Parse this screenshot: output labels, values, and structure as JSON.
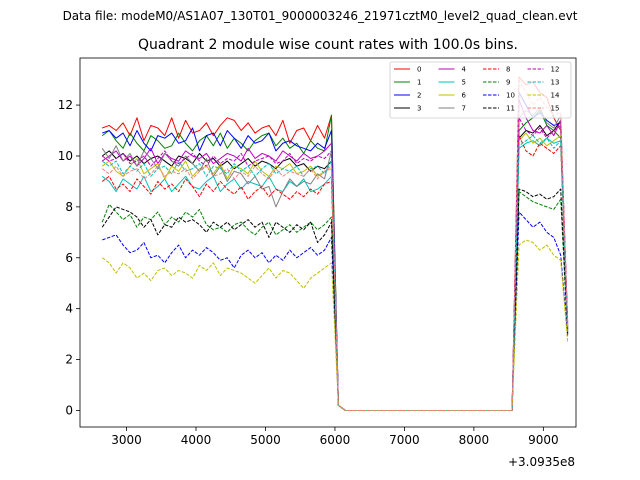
{
  "suptitle": "Data file: modeM0/AS1A07_130T01_9000003246_21971cztM0_level2_quad_clean.evt",
  "chart_data": {
    "type": "line",
    "title": "Quadrant 2 module wise count rates with 100.0s bins.",
    "xlabel": "",
    "ylabel": "",
    "offset_label": "+3.0935e8",
    "xlim": [
      2330,
      9470
    ],
    "ylim": [
      -0.65,
      13.85
    ],
    "xticks": [
      3000,
      4000,
      5000,
      6000,
      7000,
      8000,
      9000
    ],
    "xtick_labels": [
      "3000",
      "4000",
      "5000",
      "6000",
      "7000",
      "8000",
      "9000"
    ],
    "yticks": [
      0,
      2,
      4,
      6,
      8,
      10,
      12
    ],
    "ytick_labels": [
      "0",
      "2",
      "4",
      "6",
      "8",
      "10",
      "12"
    ],
    "x_start": 2650,
    "bin_width": 100,
    "legend_position": "top-right",
    "legend_columns": 4,
    "series": [
      {
        "name": "0",
        "color": "#ff0000",
        "dash": "solid",
        "values": [
          11.1,
          11.2,
          11.0,
          11.3,
          10.8,
          11.5,
          10.6,
          11.2,
          11.1,
          10.8,
          11.5,
          10.7,
          11.4,
          10.9,
          11.0,
          11.3,
          10.8,
          11.2,
          11.5,
          11.4,
          11.0,
          11.3,
          10.9,
          11.1,
          11.2,
          10.8,
          11.4,
          10.5,
          11.0,
          11.1,
          10.6,
          11.2,
          10.7,
          11.6,
          0.2,
          0,
          0,
          0,
          0,
          0,
          0,
          0,
          0,
          0,
          0,
          0,
          0,
          0,
          0,
          0,
          0,
          0,
          0,
          0,
          0,
          0,
          0,
          0,
          0,
          0,
          13.1,
          12.8,
          12.9,
          12.5,
          12.3,
          11.5,
          11.0,
          3.5
        ]
      },
      {
        "name": "1",
        "color": "#008000",
        "dash": "solid",
        "values": [
          10.8,
          11.0,
          10.6,
          10.3,
          10.9,
          10.5,
          10.2,
          10.8,
          10.6,
          10.3,
          10.4,
          10.9,
          10.5,
          10.2,
          10.6,
          10.8,
          10.4,
          10.9,
          10.3,
          10.7,
          10.5,
          10.2,
          10.6,
          10.8,
          10.9,
          10.4,
          10.7,
          10.3,
          10.5,
          10.1,
          10.6,
          10.3,
          10.2,
          11.6,
          0.2,
          0,
          0,
          0,
          0,
          0,
          0,
          0,
          0,
          0,
          0,
          0,
          0,
          0,
          0,
          0,
          0,
          0,
          0,
          0,
          0,
          0,
          0,
          0,
          0,
          0,
          11.0,
          11.3,
          11.5,
          11.8,
          11.2,
          11.0,
          10.7,
          3.2
        ]
      },
      {
        "name": "2",
        "color": "#0000ff",
        "dash": "solid",
        "values": [
          10.9,
          11.0,
          10.7,
          10.9,
          10.4,
          11.0,
          10.5,
          10.2,
          10.8,
          10.7,
          10.9,
          10.5,
          10.6,
          11.1,
          10.2,
          10.8,
          10.9,
          10.4,
          11.0,
          10.7,
          10.3,
          10.8,
          10.5,
          10.6,
          10.9,
          10.2,
          10.5,
          10.6,
          10.4,
          10.3,
          10.2,
          10.5,
          10.3,
          11.0,
          0.2,
          0,
          0,
          0,
          0,
          0,
          0,
          0,
          0,
          0,
          0,
          0,
          0,
          0,
          0,
          0,
          0,
          0,
          0,
          0,
          0,
          0,
          0,
          0,
          0,
          0,
          12.5,
          12.0,
          11.5,
          11.7,
          11.4,
          11.2,
          11.3,
          3.3
        ]
      },
      {
        "name": "3",
        "color": "#000000",
        "dash": "solid",
        "values": [
          10.0,
          10.2,
          9.9,
          10.1,
          9.8,
          10.0,
          9.7,
          9.9,
          10.0,
          9.8,
          9.6,
          10.0,
          9.9,
          9.7,
          10.1,
          9.8,
          9.9,
          9.6,
          9.8,
          9.5,
          9.7,
          9.9,
          9.6,
          9.8,
          9.7,
          9.5,
          9.8,
          9.9,
          9.6,
          9.7,
          9.4,
          9.6,
          9.5,
          9.8,
          0.2,
          0,
          0,
          0,
          0,
          0,
          0,
          0,
          0,
          0,
          0,
          0,
          0,
          0,
          0,
          0,
          0,
          0,
          0,
          0,
          0,
          0,
          0,
          0,
          0,
          0,
          10.7,
          11.0,
          10.9,
          11.2,
          10.8,
          11.0,
          11.4,
          3.1
        ]
      },
      {
        "name": "4",
        "color": "#bf00bf",
        "dash": "solid",
        "values": [
          9.8,
          10.0,
          10.2,
          9.8,
          10.0,
          9.6,
          9.9,
          10.3,
          9.7,
          10.1,
          9.9,
          9.8,
          10.2,
          10.0,
          9.9,
          10.1,
          9.7,
          9.9,
          10.1,
          10.0,
          9.8,
          10.3,
          9.9,
          10.1,
          10.0,
          9.8,
          10.2,
          10.0,
          9.8,
          10.1,
          9.9,
          10.0,
          10.2,
          10.5,
          0.2,
          0,
          0,
          0,
          0,
          0,
          0,
          0,
          0,
          0,
          0,
          0,
          0,
          0,
          0,
          0,
          0,
          0,
          0,
          0,
          0,
          0,
          0,
          0,
          0,
          0,
          12.2,
          11.5,
          11.0,
          10.9,
          11.2,
          10.8,
          11.4,
          3.4
        ]
      },
      {
        "name": "5",
        "color": "#00bfbf",
        "dash": "solid",
        "values": [
          9.2,
          9.0,
          8.6,
          9.1,
          8.9,
          8.7,
          9.2,
          8.6,
          8.8,
          9.1,
          8.6,
          8.9,
          9.2,
          8.8,
          8.7,
          9.0,
          9.2,
          8.6,
          8.9,
          9.1,
          8.7,
          9.0,
          8.9,
          8.8,
          9.2,
          8.7,
          8.6,
          9.0,
          8.8,
          9.1,
          8.6,
          8.7,
          8.9,
          9.2,
          0.2,
          0,
          0,
          0,
          0,
          0,
          0,
          0,
          0,
          0,
          0,
          0,
          0,
          0,
          0,
          0,
          0,
          0,
          0,
          0,
          0,
          0,
          0,
          0,
          0,
          0,
          10.3,
          10.5,
          10.6,
          10.4,
          10.7,
          10.5,
          10.6,
          3.0
        ]
      },
      {
        "name": "6",
        "color": "#bfbf00",
        "dash": "solid",
        "values": [
          9.6,
          9.8,
          9.4,
          9.2,
          9.6,
          9.9,
          9.3,
          9.5,
          9.7,
          9.1,
          9.6,
          9.4,
          9.8,
          9.2,
          9.5,
          9.6,
          9.3,
          9.7,
          9.1,
          9.6,
          9.5,
          9.3,
          9.8,
          9.4,
          9.2,
          9.6,
          9.5,
          9.7,
          9.3,
          9.4,
          9.6,
          9.2,
          9.4,
          9.5,
          0.2,
          0,
          0,
          0,
          0,
          0,
          0,
          0,
          0,
          0,
          0,
          0,
          0,
          0,
          0,
          0,
          0,
          0,
          0,
          0,
          0,
          0,
          0,
          0,
          0,
          0,
          10.6,
          10.9,
          10.5,
          10.7,
          10.4,
          10.6,
          10.8,
          3.0
        ]
      },
      {
        "name": "7",
        "color": "#808080",
        "dash": "solid",
        "values": [
          10.3,
          9.9,
          10.4,
          9.8,
          10.1,
          9.6,
          10.2,
          9.9,
          9.5,
          10.1,
          9.8,
          9.6,
          10.0,
          9.7,
          9.4,
          9.9,
          9.2,
          9.6,
          9.0,
          9.4,
          9.3,
          8.9,
          9.2,
          8.7,
          8.8,
          8.0,
          8.6,
          9.1,
          8.8,
          9.0,
          8.9,
          9.3,
          9.1,
          10.2,
          0.2,
          0,
          0,
          0,
          0,
          0,
          0,
          0,
          0,
          0,
          0,
          0,
          0,
          0,
          0,
          0,
          0,
          0,
          0,
          0,
          0,
          0,
          0,
          0,
          0,
          0,
          11.5,
          11.8,
          11.6,
          11.9,
          11.3,
          11.1,
          11.6,
          3.2
        ]
      },
      {
        "name": "8",
        "color": "#ff0000",
        "dash": "dashed",
        "values": [
          9.0,
          9.2,
          8.7,
          8.9,
          8.6,
          9.1,
          8.8,
          8.5,
          9.0,
          8.7,
          8.9,
          8.6,
          9.1,
          8.8,
          8.4,
          8.9,
          8.6,
          9.0,
          8.7,
          8.5,
          8.8,
          8.3,
          8.6,
          8.8,
          8.4,
          8.7,
          8.5,
          8.3,
          8.6,
          8.4,
          8.7,
          8.5,
          8.9,
          9.0,
          0.2,
          0,
          0,
          0,
          0,
          0,
          0,
          0,
          0,
          0,
          0,
          0,
          0,
          0,
          0,
          0,
          0,
          0,
          0,
          0,
          0,
          0,
          0,
          0,
          0,
          0,
          10.8,
          10.2,
          10.0,
          10.5,
          10.3,
          10.1,
          10.4,
          3.0
        ]
      },
      {
        "name": "9",
        "color": "#008000",
        "dash": "dashed",
        "values": [
          7.4,
          8.1,
          7.8,
          7.5,
          7.7,
          7.2,
          7.6,
          7.5,
          7.8,
          7.3,
          7.6,
          7.4,
          7.8,
          7.6,
          7.9,
          7.3,
          7.1,
          7.2,
          7.0,
          7.3,
          7.4,
          7.1,
          6.9,
          7.2,
          7.4,
          6.9,
          7.1,
          7.3,
          7.0,
          7.2,
          7.4,
          7.1,
          7.3,
          7.6,
          0.2,
          0,
          0,
          0,
          0,
          0,
          0,
          0,
          0,
          0,
          0,
          0,
          0,
          0,
          0,
          0,
          0,
          0,
          0,
          0,
          0,
          0,
          0,
          0,
          0,
          0,
          8.6,
          8.4,
          8.2,
          8.1,
          8.0,
          7.9,
          8.3,
          2.9
        ]
      },
      {
        "name": "10",
        "color": "#0000ff",
        "dash": "dashed",
        "values": [
          6.7,
          6.8,
          6.9,
          6.5,
          6.2,
          6.3,
          6.6,
          6.0,
          6.1,
          5.8,
          6.2,
          6.5,
          6.0,
          6.3,
          6.1,
          6.4,
          6.2,
          5.9,
          6.0,
          5.6,
          6.1,
          6.3,
          6.0,
          6.2,
          5.8,
          6.1,
          5.9,
          6.3,
          6.0,
          6.2,
          6.4,
          6.1,
          6.3,
          6.8,
          0.2,
          0,
          0,
          0,
          0,
          0,
          0,
          0,
          0,
          0,
          0,
          0,
          0,
          0,
          0,
          0,
          0,
          0,
          0,
          0,
          0,
          0,
          0,
          0,
          0,
          0,
          7.8,
          7.5,
          7.2,
          7.4,
          7.0,
          6.8,
          6.1,
          2.9
        ]
      },
      {
        "name": "11",
        "color": "#000000",
        "dash": "dashed",
        "values": [
          7.2,
          7.6,
          8.0,
          7.9,
          7.8,
          7.6,
          7.2,
          7.5,
          6.9,
          7.3,
          7.2,
          7.6,
          7.4,
          7.5,
          7.3,
          7.0,
          7.4,
          7.2,
          7.4,
          7.1,
          7.3,
          7.5,
          7.2,
          7.4,
          6.8,
          7.4,
          7.2,
          7.0,
          7.3,
          7.1,
          7.4,
          6.6,
          6.9,
          7.4,
          0.2,
          0,
          0,
          0,
          0,
          0,
          0,
          0,
          0,
          0,
          0,
          0,
          0,
          0,
          0,
          0,
          0,
          0,
          0,
          0,
          0,
          0,
          0,
          0,
          0,
          0,
          8.7,
          8.6,
          8.4,
          8.5,
          8.3,
          8.4,
          8.7,
          3.0
        ]
      },
      {
        "name": "12",
        "color": "#bf00bf",
        "dash": "dashed",
        "values": [
          10.0,
          9.8,
          9.9,
          10.1,
          9.7,
          9.8,
          10.0,
          9.6,
          9.9,
          10.2,
          9.8,
          9.7,
          9.9,
          10.1,
          9.8,
          9.6,
          10.0,
          9.7,
          9.9,
          9.8,
          10.1,
          9.6,
          9.8,
          9.9,
          10.0,
          9.7,
          9.8,
          10.1,
          9.7,
          9.9,
          9.8,
          10.0,
          9.9,
          10.2,
          0.2,
          0,
          0,
          0,
          0,
          0,
          0,
          0,
          0,
          0,
          0,
          0,
          0,
          0,
          0,
          0,
          0,
          0,
          0,
          0,
          0,
          0,
          0,
          0,
          0,
          0,
          11.5,
          11.0,
          10.8,
          11.1,
          10.7,
          11.0,
          11.2,
          3.2
        ]
      },
      {
        "name": "13",
        "color": "#00bfbf",
        "dash": "dashed",
        "values": [
          9.8,
          9.6,
          9.8,
          9.3,
          9.6,
          9.4,
          9.7,
          9.2,
          9.5,
          9.6,
          9.3,
          9.8,
          9.4,
          9.5,
          9.7,
          9.2,
          9.6,
          9.5,
          9.3,
          9.7,
          9.4,
          9.6,
          9.2,
          9.5,
          9.7,
          9.3,
          9.5,
          9.4,
          9.6,
          9.2,
          9.5,
          9.6,
          9.3,
          9.8,
          0.2,
          0,
          0,
          0,
          0,
          0,
          0,
          0,
          0,
          0,
          0,
          0,
          0,
          0,
          0,
          0,
          0,
          0,
          0,
          0,
          0,
          0,
          0,
          0,
          0,
          0,
          10.4,
          10.6,
          10.8,
          10.5,
          10.7,
          10.3,
          10.6,
          3.1
        ]
      },
      {
        "name": "14",
        "color": "#bfbf00",
        "dash": "dashed",
        "values": [
          6.0,
          5.8,
          5.4,
          5.8,
          5.6,
          5.2,
          5.4,
          5.1,
          5.5,
          5.6,
          5.3,
          5.5,
          5.4,
          5.2,
          5.7,
          5.5,
          5.8,
          5.3,
          5.6,
          5.5,
          5.4,
          5.2,
          5.0,
          5.3,
          5.6,
          5.2,
          5.5,
          5.4,
          5.1,
          4.8,
          5.2,
          5.4,
          5.6,
          5.8,
          0.2,
          0,
          0,
          0,
          0,
          0,
          0,
          0,
          0,
          0,
          0,
          0,
          0,
          0,
          0,
          0,
          0,
          0,
          0,
          0,
          0,
          0,
          0,
          0,
          0,
          0,
          6.5,
          6.7,
          6.6,
          6.3,
          6.5,
          6.1,
          5.9,
          2.7
        ]
      },
      {
        "name": "15",
        "color": "#ff8080",
        "dash": "dashed",
        "values": [
          9.5,
          9.3,
          9.6,
          9.2,
          9.4,
          9.5,
          9.1,
          9.3,
          9.6,
          9.2,
          9.4,
          9.3,
          9.5,
          9.1,
          9.4,
          9.6,
          9.2,
          9.3,
          9.5,
          9.1,
          9.4,
          9.2,
          9.6,
          9.3,
          9.1,
          9.5,
          9.2,
          9.4,
          9.3,
          9.2,
          9.5,
          9.1,
          9.4,
          9.6,
          0.2,
          0,
          0,
          0,
          0,
          0,
          0,
          0,
          0,
          0,
          0,
          0,
          0,
          0,
          0,
          0,
          0,
          0,
          0,
          0,
          0,
          0,
          0,
          0,
          0,
          0,
          13.0,
          12.5,
          12.0,
          12.3,
          11.9,
          11.6,
          11.7,
          3.3
        ]
      }
    ]
  }
}
